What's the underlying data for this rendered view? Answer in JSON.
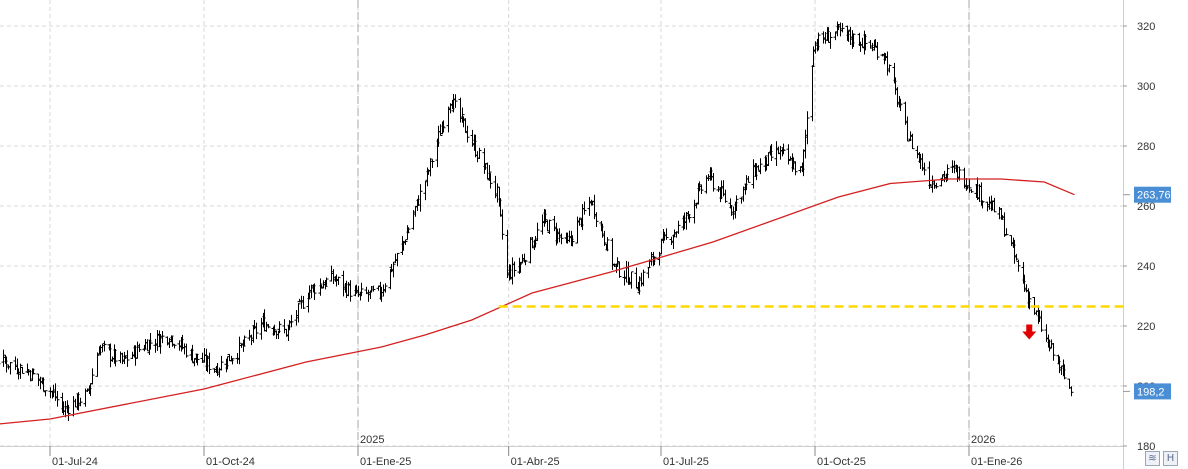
{
  "chart_data": {
    "type": "candlestick",
    "title": "",
    "xlabel": "",
    "ylabel": "",
    "ylim": [
      178,
      326
    ],
    "y_axis_side": "right",
    "y_ticks": [
      "180",
      "200",
      "220",
      "240",
      "260",
      "280",
      "300",
      "320"
    ],
    "x_ticks": [
      {
        "label": "01-Jul-24",
        "date": "2024-07-01"
      },
      {
        "label": "01-Oct-24",
        "date": "2024-10-01"
      },
      {
        "label": "01-Ene-25",
        "date": "2025-01-01"
      },
      {
        "label": "01-Abr-25",
        "date": "2025-04-01"
      },
      {
        "label": "01-Jul-25",
        "date": "2025-07-01"
      },
      {
        "label": "01-Oct-25",
        "date": "2025-10-01"
      },
      {
        "label": "01-Ene-26",
        "date": "2026-01-01"
      }
    ],
    "year_markers": [
      {
        "label": "2025",
        "date": "2025-01-01"
      },
      {
        "label": "2026",
        "date": "2026-01-01"
      }
    ],
    "grid": true,
    "series": [
      {
        "type": "ohlc",
        "color": "#000000",
        "points": [
          {
            "date": "2024-05-07",
            "close": 208
          },
          {
            "date": "2024-05-21",
            "close": 210
          },
          {
            "date": "2024-06-04",
            "close": 208
          },
          {
            "date": "2024-06-18",
            "close": 205
          },
          {
            "date": "2024-07-02",
            "close": 198
          },
          {
            "date": "2024-07-09",
            "close": 192
          },
          {
            "date": "2024-07-23",
            "close": 197
          },
          {
            "date": "2024-07-30",
            "close": 213
          },
          {
            "date": "2024-08-13",
            "close": 208
          },
          {
            "date": "2024-08-27",
            "close": 214
          },
          {
            "date": "2024-09-10",
            "close": 217
          },
          {
            "date": "2024-09-24",
            "close": 210
          },
          {
            "date": "2024-10-08",
            "close": 206
          },
          {
            "date": "2024-10-22",
            "close": 212
          },
          {
            "date": "2024-11-05",
            "close": 221
          },
          {
            "date": "2024-11-19",
            "close": 218
          },
          {
            "date": "2024-12-03",
            "close": 232
          },
          {
            "date": "2024-12-17",
            "close": 236
          },
          {
            "date": "2024-12-31",
            "close": 230
          },
          {
            "date": "2025-01-14",
            "close": 231
          },
          {
            "date": "2025-01-28",
            "close": 248
          },
          {
            "date": "2025-02-11",
            "close": 270
          },
          {
            "date": "2025-02-25",
            "close": 296
          },
          {
            "date": "2025-03-11",
            "close": 280
          },
          {
            "date": "2025-03-25",
            "close": 264
          },
          {
            "date": "2025-03-31",
            "close": 237
          },
          {
            "date": "2025-04-08",
            "close": 241
          },
          {
            "date": "2025-04-22",
            "close": 255
          },
          {
            "date": "2025-05-06",
            "close": 247
          },
          {
            "date": "2025-05-20",
            "close": 262
          },
          {
            "date": "2025-06-03",
            "close": 240
          },
          {
            "date": "2025-06-17",
            "close": 234
          },
          {
            "date": "2025-07-01",
            "close": 247
          },
          {
            "date": "2025-07-15",
            "close": 255
          },
          {
            "date": "2025-07-29",
            "close": 270
          },
          {
            "date": "2025-08-12",
            "close": 259
          },
          {
            "date": "2025-08-26",
            "close": 272
          },
          {
            "date": "2025-09-09",
            "close": 278
          },
          {
            "date": "2025-09-23",
            "close": 271
          },
          {
            "date": "2025-09-30",
            "close": 314
          },
          {
            "date": "2025-10-14",
            "close": 318
          },
          {
            "date": "2025-10-28",
            "close": 315
          },
          {
            "date": "2025-11-11",
            "close": 311
          },
          {
            "date": "2025-11-25",
            "close": 284
          },
          {
            "date": "2025-12-09",
            "close": 268
          },
          {
            "date": "2025-12-23",
            "close": 272
          },
          {
            "date": "2026-01-06",
            "close": 265
          },
          {
            "date": "2026-01-20",
            "close": 256
          },
          {
            "date": "2026-02-03",
            "close": 233
          },
          {
            "date": "2026-02-17",
            "close": 214
          },
          {
            "date": "2026-03-03",
            "close": 198.2
          }
        ]
      },
      {
        "type": "line",
        "color": "#d42020",
        "points": [
          {
            "date": "2024-05-07",
            "value": 186
          },
          {
            "date": "2024-07-01",
            "value": 189
          },
          {
            "date": "2024-10-01",
            "value": 199
          },
          {
            "date": "2024-12-01",
            "value": 208
          },
          {
            "date": "2025-01-15",
            "value": 213
          },
          {
            "date": "2025-02-10",
            "value": 217
          },
          {
            "date": "2025-03-10",
            "value": 222
          },
          {
            "date": "2025-04-15",
            "value": 231
          },
          {
            "date": "2025-06-01",
            "value": 238
          },
          {
            "date": "2025-08-01",
            "value": 248
          },
          {
            "date": "2025-09-20",
            "value": 258
          },
          {
            "date": "2025-10-15",
            "value": 263
          },
          {
            "date": "2025-11-15",
            "value": 267.5
          },
          {
            "date": "2025-12-20",
            "value": 269
          },
          {
            "date": "2026-01-20",
            "value": 269
          },
          {
            "date": "2026-02-15",
            "value": 268
          },
          {
            "date": "2026-03-05",
            "value": 263.76
          }
        ]
      }
    ],
    "horizontal_lines": [
      {
        "value": 226.5,
        "color": "#ffd800",
        "style": "dashed",
        "from_date": "2025-03-26"
      }
    ],
    "annotations": [
      {
        "type": "arrow-down",
        "date": "2026-02-06",
        "value": 218.5,
        "color": "#e00000"
      }
    ],
    "price_labels": [
      {
        "text": "263,76",
        "value": 263.76,
        "color": "#4a8fd6"
      },
      {
        "text": "198,2",
        "value": 198.2,
        "color": "#4a8fd6"
      }
    ]
  },
  "ui": {
    "corner_buttons": [
      {
        "name": "scroll-sync-icon",
        "glyph": "≋"
      },
      {
        "name": "chart-type-icon",
        "glyph": "H"
      }
    ]
  }
}
